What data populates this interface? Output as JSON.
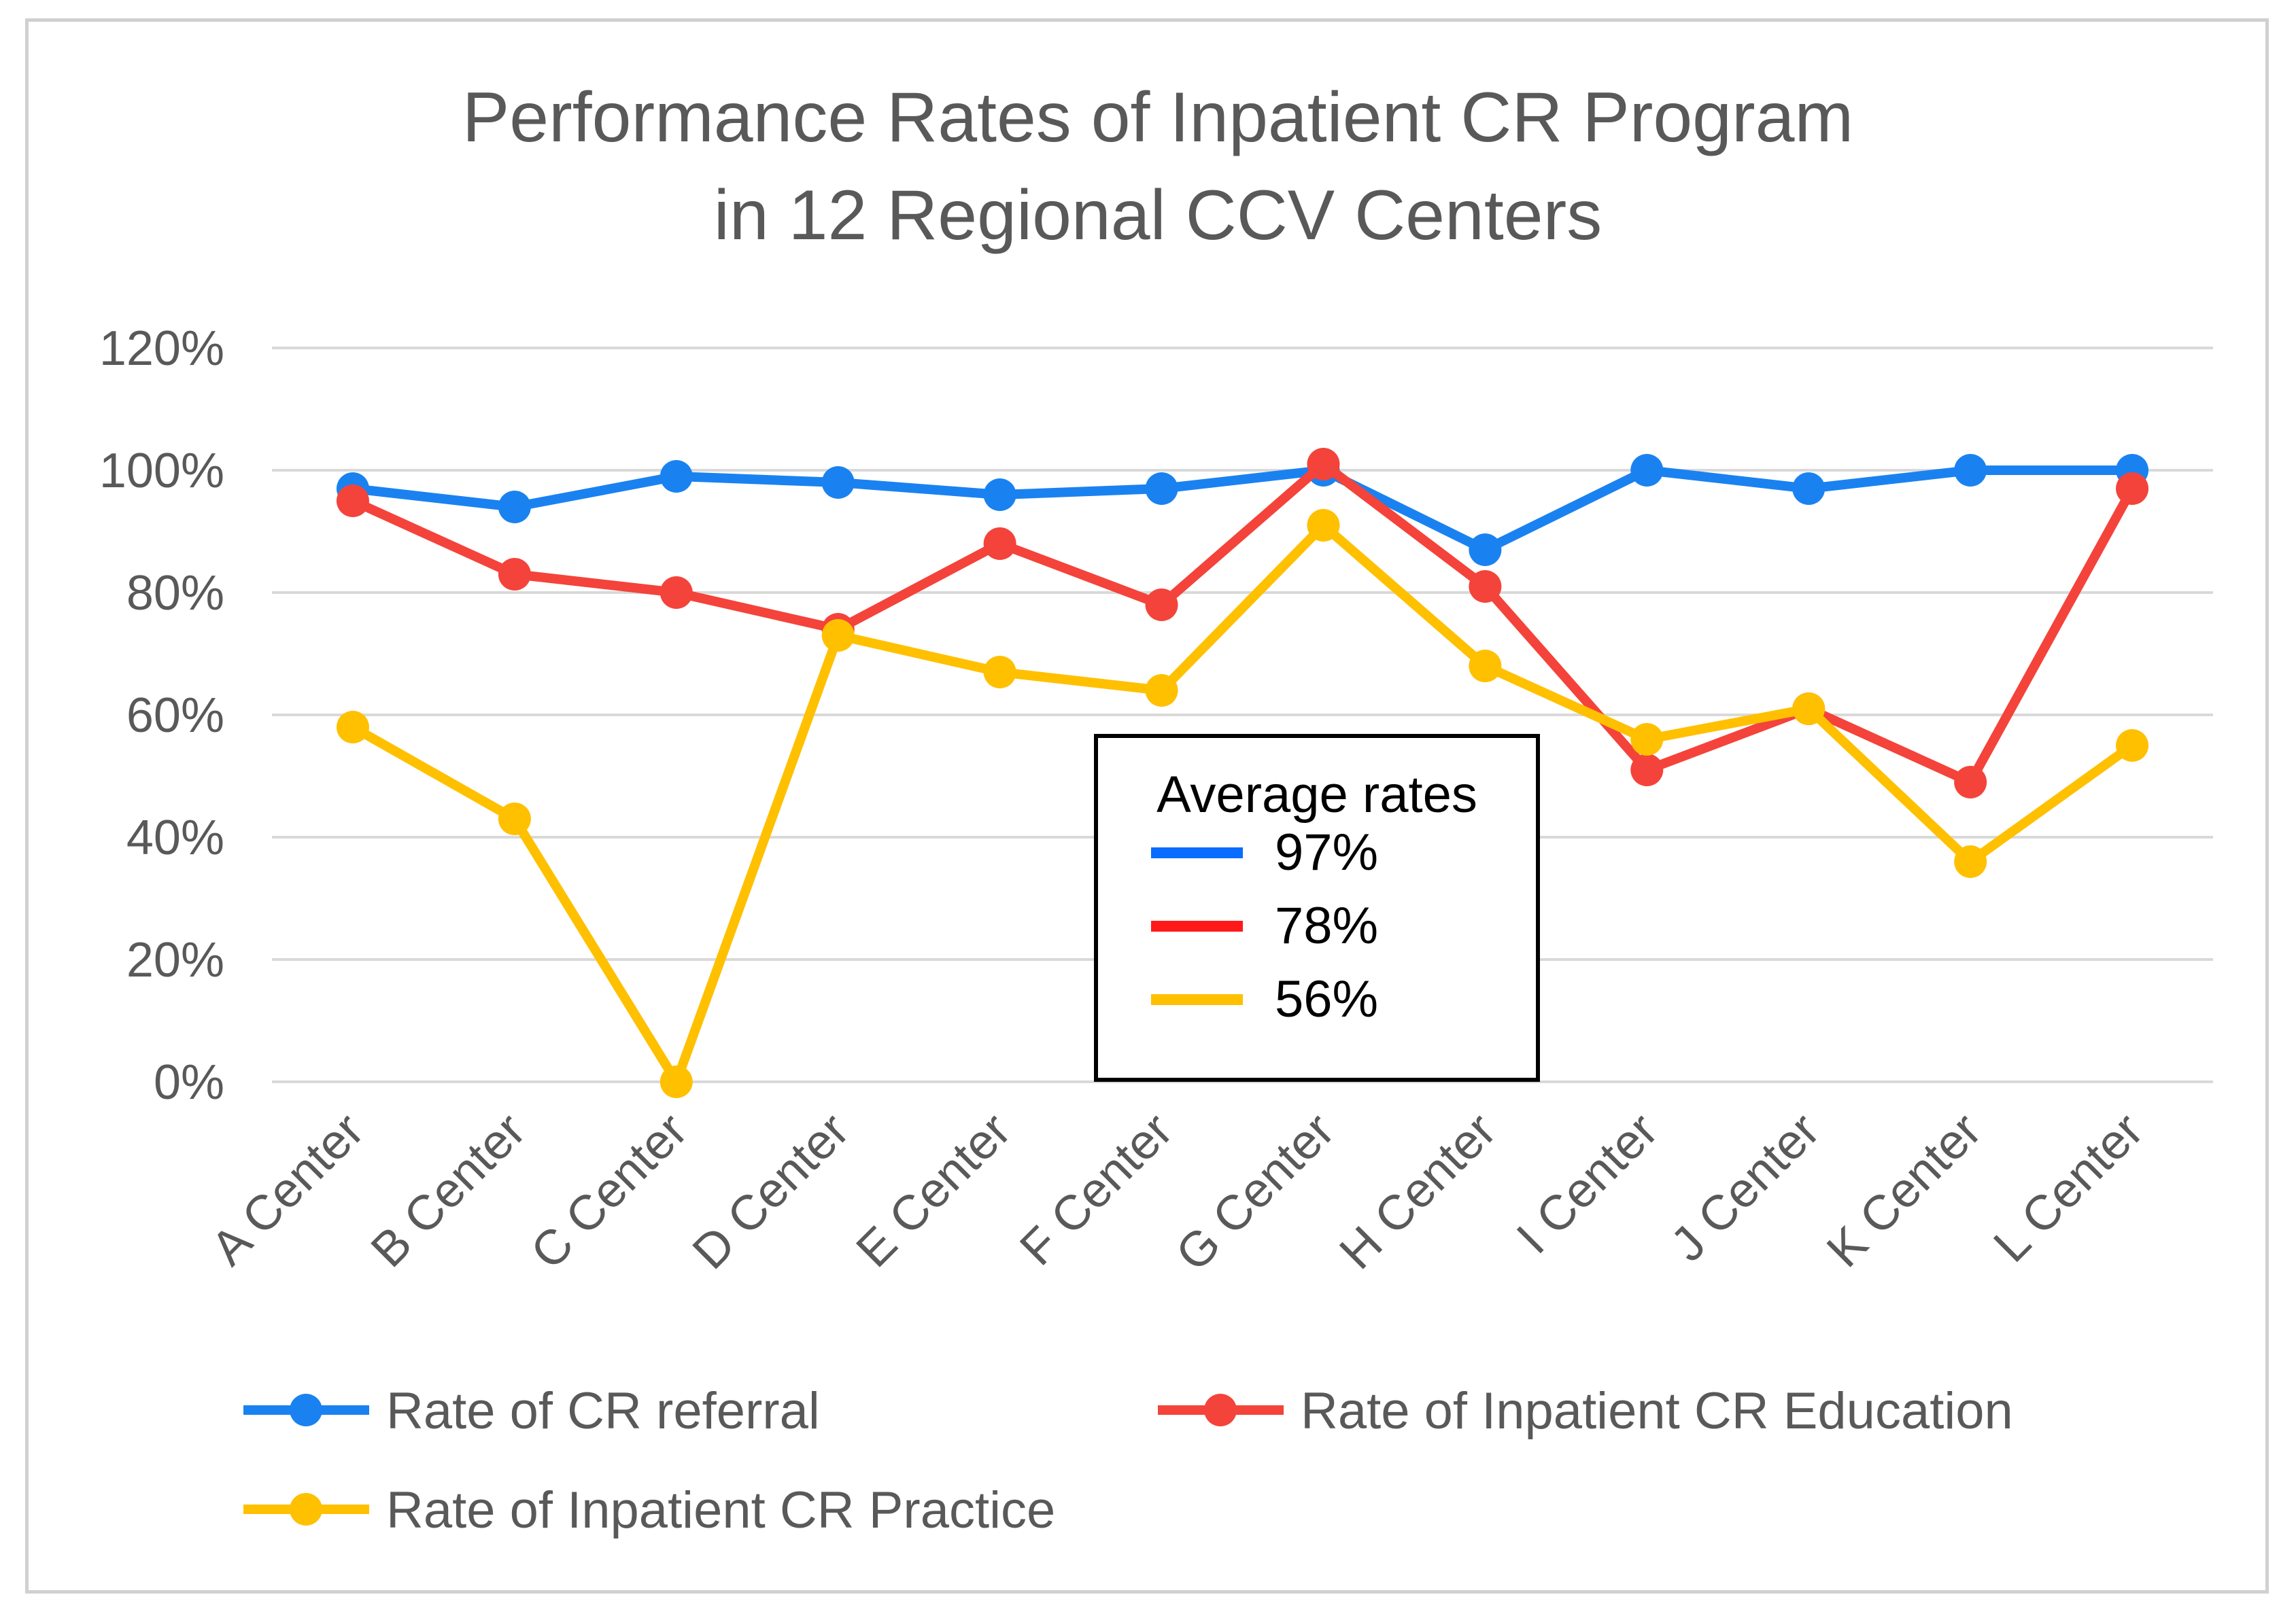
{
  "chart_data": {
    "type": "line",
    "title": [
      "Performance Rates of Inpatient CR Program",
      "in 12 Regional CCV Centers"
    ],
    "xlabel": "",
    "ylabel": "",
    "ylim": [
      0,
      120
    ],
    "yticks": [
      {
        "value": 0,
        "label": "0%"
      },
      {
        "value": 20,
        "label": "20%"
      },
      {
        "value": 40,
        "label": "40%"
      },
      {
        "value": 60,
        "label": "60%"
      },
      {
        "value": 80,
        "label": "80%"
      },
      {
        "value": 100,
        "label": "100%"
      },
      {
        "value": 120,
        "label": "120%"
      }
    ],
    "grid": true,
    "categories": [
      "A Center",
      "B Center",
      "C Center",
      "D Center",
      "E Center",
      "F Center",
      "G Center",
      "H Center",
      "I Center",
      "J Center",
      "K Center",
      "L Center"
    ],
    "series": [
      {
        "name": "Rate of CR referral",
        "color": "#1a82f0",
        "values": [
          97,
          94,
          99,
          98,
          96,
          97,
          100,
          87,
          100,
          97,
          100,
          100
        ]
      },
      {
        "name": "Rate of Inpatient CR Education",
        "color": "#f4433a",
        "values": [
          95,
          83,
          80,
          74,
          88,
          78,
          101,
          81,
          51,
          61,
          49,
          97
        ]
      },
      {
        "name": "Rate of Inpatient CR Practice",
        "color": "#ffc000",
        "values": [
          58,
          43,
          0,
          73,
          67,
          64,
          91,
          68,
          56,
          61,
          36,
          55
        ]
      }
    ],
    "legend_position": "bottom",
    "annotation": {
      "title": "Average rates",
      "entries": [
        {
          "label": "97%",
          "color": "#0a6cff"
        },
        {
          "label": "78%",
          "color": "#ff1a1a"
        },
        {
          "label": "56%",
          "color": "#ffc000"
        }
      ]
    }
  }
}
